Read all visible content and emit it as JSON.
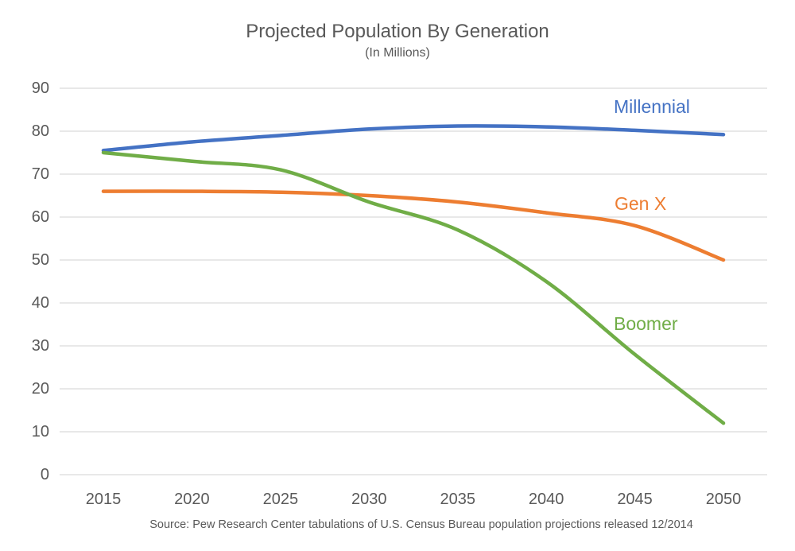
{
  "chart_data": {
    "type": "line",
    "title": "Projected Population By Generation",
    "subtitle": "(In Millions)",
    "source": "Source: Pew Research Center tabulations of U.S. Census Bureau population projections released 12/2014",
    "categories": [
      "2015",
      "2020",
      "2025",
      "2030",
      "2035",
      "2040",
      "2045",
      "2050"
    ],
    "series": [
      {
        "name": "Millennial",
        "color": "#4472C4",
        "values": [
          75.5,
          77.5,
          79,
          80.5,
          81.2,
          81,
          80.2,
          79.2
        ]
      },
      {
        "name": "Gen X",
        "color": "#ED7D31",
        "values": [
          66,
          66,
          65.8,
          65,
          63.5,
          61,
          58,
          50
        ]
      },
      {
        "name": "Boomer",
        "color": "#70AD47",
        "values": [
          75,
          73,
          71,
          63.5,
          57,
          45,
          28,
          12
        ]
      }
    ],
    "ylim": [
      0,
      90
    ],
    "yticks": [
      0,
      10,
      20,
      30,
      40,
      50,
      60,
      70,
      80,
      90
    ],
    "grid": true,
    "smooth": true,
    "legend_position": "inline-labels",
    "gridline_color": "#D9D9D9",
    "text_color": "#595959"
  }
}
